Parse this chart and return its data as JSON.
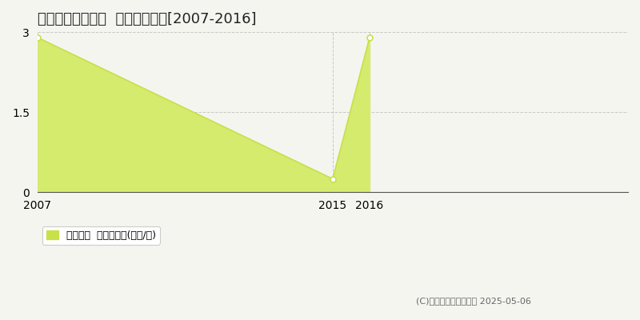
{
  "title": "西伯郡大山町東嵪  土地価格推移[2007-2016]",
  "x_values": [
    2007,
    2015,
    2016
  ],
  "y_values": [
    2.9,
    0.25,
    2.9
  ],
  "line_color": "#c8e04a",
  "fill_color": "#d4eb6e",
  "marker_color": "#c8e04a",
  "marker_face": "#ffffff",
  "ylim": [
    0,
    3
  ],
  "yticks": [
    0,
    1.5,
    3
  ],
  "xlim": [
    2007,
    2023
  ],
  "xlim_display": [
    2007,
    2016
  ],
  "xticks": [
    2007,
    2015,
    2016
  ],
  "grid_color": "#bbbbbb",
  "bg_color": "#f5f5f0",
  "plot_bg": "#f5f5f0",
  "legend_label": "土地価格  平均坪単価(万円/坪)",
  "copyright": "(C)土地価格ドットコム 2025-05-06",
  "title_fontsize": 13,
  "axis_fontsize": 10,
  "legend_fontsize": 9
}
